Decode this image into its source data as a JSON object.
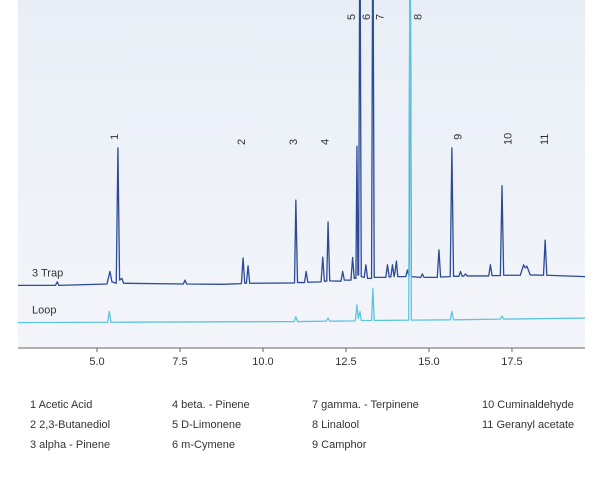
{
  "chart_data": {
    "type": "line",
    "xlim": [
      2.62,
      19.7
    ],
    "xticks": [
      {
        "value": 5,
        "label": "5.0"
      },
      7.5,
      {
        "value": 10,
        "label": "10.0"
      },
      12.5,
      {
        "value": 15,
        "label": "15.0"
      },
      17.5
    ],
    "ylim": [
      0,
      100
    ],
    "series": [
      {
        "name": "3 Trap",
        "color": "#2b4a98",
        "x": [
          2.62,
          3.75,
          3.8,
          3.85,
          5.3,
          5.39,
          5.45,
          5.58,
          5.63,
          5.68,
          5.75,
          5.8,
          7.6,
          7.65,
          7.7,
          8.8,
          9.35,
          9.4,
          9.45,
          9.5,
          9.55,
          9.6,
          10.95,
          10.99,
          11.04,
          11.25,
          11.3,
          11.35,
          11.75,
          11.8,
          11.85,
          11.92,
          11.96,
          12.01,
          12.35,
          12.4,
          12.45,
          12.65,
          12.7,
          12.75,
          12.8,
          12.83,
          12.86,
          12.88,
          12.92,
          12.96,
          13.05,
          13.1,
          13.15,
          13.27,
          13.31,
          13.35,
          13.7,
          13.75,
          13.8,
          13.85,
          13.9,
          13.95,
          13.98,
          14.02,
          14.06,
          14.3,
          14.35,
          14.4,
          14.43,
          14.47,
          14.75,
          14.8,
          14.85,
          15.25,
          15.3,
          15.35,
          15.64,
          15.69,
          15.74,
          15.9,
          15.95,
          16.0,
          16.05,
          16.1,
          16.15,
          16.8,
          16.85,
          16.9,
          17.15,
          17.2,
          17.25,
          17.75,
          17.85,
          17.9,
          17.95,
          18.05,
          18.45,
          18.5,
          18.55,
          19.7
        ],
        "values": [
          18.0,
          18.0,
          19.0,
          18.0,
          18.4,
          22.0,
          19.0,
          18.6,
          57.5,
          19.5,
          20.0,
          18.6,
          18.4,
          19.5,
          18.4,
          18.3,
          18.5,
          25.9,
          18.6,
          18.6,
          23.6,
          18.6,
          18.7,
          42.5,
          18.8,
          18.8,
          22.0,
          18.9,
          19.0,
          26.1,
          19.2,
          19.2,
          36.2,
          19.3,
          19.2,
          22.0,
          19.5,
          19.5,
          26.0,
          20.0,
          20.0,
          58.0,
          21.0,
          21.0,
          130,
          20.5,
          20.3,
          23.9,
          20.0,
          20.0,
          130,
          20.3,
          20.3,
          23.9,
          20.4,
          20.4,
          23.9,
          20.5,
          22.0,
          25.0,
          20.5,
          20.5,
          22.4,
          20.6,
          130,
          20.5,
          20.3,
          21.3,
          20.3,
          20.3,
          28.2,
          20.4,
          20.5,
          57.5,
          20.6,
          20.6,
          22.0,
          20.6,
          20.7,
          21.3,
          20.7,
          20.7,
          23.9,
          20.8,
          20.8,
          46.6,
          20.9,
          20.9,
          23.9,
          23.0,
          23.5,
          21.0,
          20.9,
          31.0,
          20.9,
          20.5
        ]
      },
      {
        "name": "Loop",
        "color": "#5cc6df",
        "x": [
          2.62,
          5.32,
          5.37,
          5.42,
          10.94,
          10.99,
          11.04,
          11.9,
          11.96,
          12.01,
          12.78,
          12.83,
          12.87,
          12.92,
          12.96,
          13.27,
          13.31,
          13.35,
          14.39,
          14.43,
          14.47,
          15.64,
          15.69,
          15.74,
          17.15,
          17.2,
          17.25,
          19.7
        ],
        "values": [
          7.3,
          7.4,
          10.5,
          7.4,
          7.6,
          9.0,
          7.6,
          7.7,
          8.6,
          7.7,
          7.8,
          12.4,
          8.5,
          10.5,
          7.9,
          7.9,
          17.2,
          7.9,
          8.0,
          130,
          8.0,
          8.1,
          10.5,
          8.1,
          8.3,
          9.2,
          8.3,
          8.6
        ]
      }
    ],
    "annotations": [
      {
        "text": "1",
        "x": 5.54
      },
      {
        "text": "2",
        "x": 9.37
      },
      {
        "text": "3",
        "x": 10.93
      },
      {
        "text": "4",
        "x": 11.89
      },
      {
        "text": "5",
        "x": 12.68
      },
      {
        "text": "6",
        "x": 13.13
      },
      {
        "text": "7",
        "x": 13.55
      },
      {
        "text": "8",
        "x": 14.69
      },
      {
        "text": "9",
        "x": 15.9
      },
      {
        "text": "10",
        "x": 17.4
      },
      {
        "text": "11",
        "x": 18.5
      }
    ],
    "peak_names": [
      "1 Acetic Acid",
      "2 2,3-Butanediol",
      "3 alpha - Pinene",
      "4 beta. - Pinene",
      "5 D-Limonene",
      "6 m-Cymene",
      "7 gamma. - Terpinene",
      "8 Linalool",
      "9 Camphor",
      "10 Cuminaldehyde",
      "11 Geranyl acetate"
    ]
  }
}
